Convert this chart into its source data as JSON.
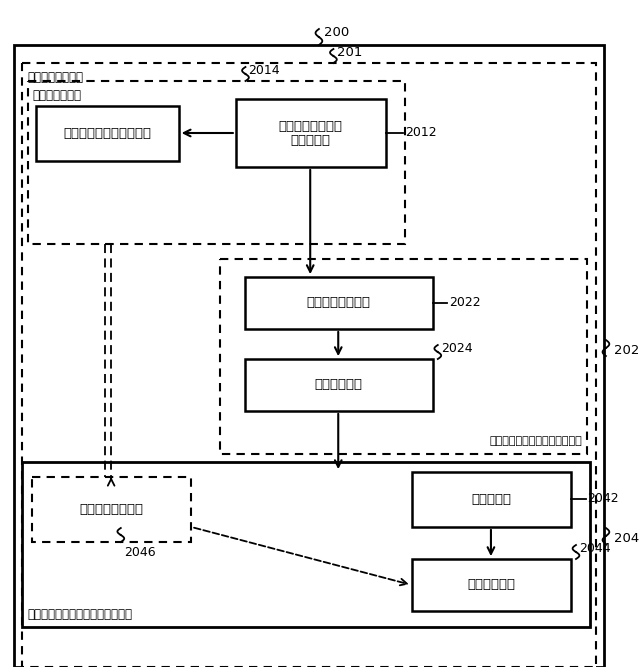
{
  "bg_color": "#ffffff",
  "fig_width": 6.4,
  "fig_height": 6.67,
  "label_200": "200",
  "label_201": "201",
  "label_2012": "2012",
  "label_2014": "2014",
  "label_2022": "2022",
  "label_2024": "2024",
  "label_202": "202",
  "label_2042": "2042",
  "label_2044": "2044",
  "label_2046": "2046",
  "label_204": "204",
  "box_frame_classifier": "フレーム・レベル分類器",
  "box_feature_extractor_l1": "フレーム・レベル",
  "box_feature_extractor_l2": "特徴抽出器",
  "box_short_feature": "短期的特徴抽出器",
  "box_short_classifier": "短期的分類器",
  "box_long_feature": "長期的特徴抽出器",
  "box_stats": "統計抽出器",
  "box_long_classifier": "長期的分類器",
  "label_audio_classifier": "オーディオ分類器",
  "label_frame_classifier": "フレーム分類器",
  "label_audio_content": "オーディオ・コンテンツ分類器",
  "label_audio_context": "オーディオ・コンテキスト分類器"
}
